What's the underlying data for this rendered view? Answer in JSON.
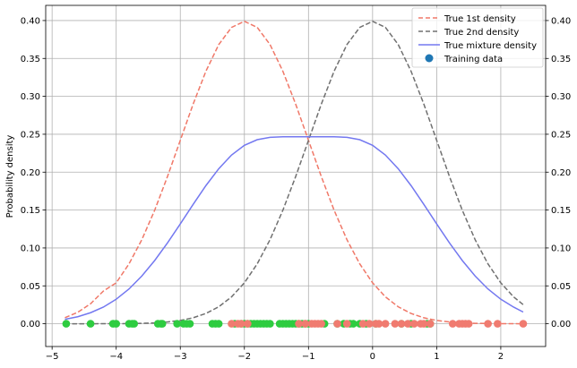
{
  "chart_data": {
    "type": "line",
    "title": "",
    "xlabel": "",
    "ylabel": "Probability density",
    "xlim": [
      -5.1,
      2.7
    ],
    "ylim": [
      -0.03,
      0.42
    ],
    "grid": true,
    "legend_position": "top-right",
    "x_ticks": [
      -5,
      -4,
      -3,
      -2,
      -1,
      0,
      1,
      2
    ],
    "x_tick_labels": [
      "−5",
      "−4",
      "−3",
      "−2",
      "−1",
      "0",
      "1",
      "2"
    ],
    "y_ticks": [
      0.0,
      0.05,
      0.1,
      0.15,
      0.2,
      0.25,
      0.3,
      0.35,
      0.4
    ],
    "y_tick_labels": [
      "0.00",
      "0.05",
      "0.10",
      "0.15",
      "0.20",
      "0.25",
      "0.30",
      "0.35",
      "0.40"
    ],
    "right_y_tick_labels": [
      "0.00",
      "0.05",
      "0.10",
      "0.15",
      "0.20",
      "0.25",
      "0.30",
      "0.35",
      "0.40"
    ],
    "series": [
      {
        "name": "True 1st density",
        "style": "dashed",
        "color": "#f07868",
        "x": [
          -4.8,
          -4.6,
          -4.4,
          -4.2,
          -4.0,
          -3.8,
          -3.6,
          -3.4,
          -3.2,
          -3.0,
          -2.8,
          -2.6,
          -2.4,
          -2.2,
          -2.0,
          -1.8,
          -1.6,
          -1.4,
          -1.2,
          -1.0,
          -0.8,
          -0.6,
          -0.4,
          -0.2,
          0.0,
          0.2,
          0.4,
          0.6,
          0.8,
          1.0,
          1.2,
          1.4,
          1.6,
          1.8,
          2.0,
          2.2,
          2.35
        ],
        "y": [
          0.008,
          0.0151,
          0.0264,
          0.0431,
          0.054,
          0.079,
          0.1109,
          0.1497,
          0.1942,
          0.242,
          0.2897,
          0.3332,
          0.3683,
          0.391,
          0.3989,
          0.391,
          0.3683,
          0.3332,
          0.2897,
          0.242,
          0.1942,
          0.1497,
          0.1109,
          0.079,
          0.054,
          0.0355,
          0.0224,
          0.0136,
          0.0079,
          0.0044,
          0.0024,
          0.0012,
          0.0006,
          0.0003,
          0.0001,
          0.0001,
          0.0
        ]
      },
      {
        "name": "True 2nd density",
        "style": "dashed",
        "color": "#707070",
        "x": [
          -4.8,
          -4.6,
          -4.4,
          -4.2,
          -4.0,
          -3.8,
          -3.6,
          -3.4,
          -3.2,
          -3.0,
          -2.8,
          -2.6,
          -2.4,
          -2.2,
          -2.0,
          -1.8,
          -1.6,
          -1.4,
          -1.2,
          -1.0,
          -0.8,
          -0.6,
          -0.4,
          -0.2,
          0.0,
          0.2,
          0.4,
          0.6,
          0.8,
          1.0,
          1.2,
          1.4,
          1.6,
          1.8,
          2.0,
          2.2,
          2.35
        ],
        "y": [
          0.0,
          0.0,
          0.0,
          0.0001,
          0.0001,
          0.0003,
          0.0006,
          0.0012,
          0.0024,
          0.0044,
          0.0079,
          0.0136,
          0.0224,
          0.0355,
          0.054,
          0.079,
          0.1109,
          0.1497,
          0.1942,
          0.242,
          0.2897,
          0.3332,
          0.3683,
          0.391,
          0.3989,
          0.391,
          0.3683,
          0.3332,
          0.2897,
          0.242,
          0.1942,
          0.1497,
          0.1109,
          0.079,
          0.054,
          0.0355,
          0.0252
        ]
      },
      {
        "name": "True mixture density",
        "style": "solid",
        "color": "#7378f0",
        "x": [
          -4.8,
          -4.6,
          -4.4,
          -4.2,
          -4.0,
          -3.8,
          -3.6,
          -3.4,
          -3.2,
          -3.0,
          -2.8,
          -2.6,
          -2.4,
          -2.2,
          -2.0,
          -1.8,
          -1.6,
          -1.4,
          -1.2,
          -1.0,
          -0.8,
          -0.6,
          -0.4,
          -0.2,
          0.0,
          0.2,
          0.4,
          0.6,
          0.8,
          1.0,
          1.2,
          1.4,
          1.6,
          1.8,
          2.0,
          2.2,
          2.35
        ],
        "y": [
          0.0059,
          0.0093,
          0.0146,
          0.022,
          0.0324,
          0.0459,
          0.063,
          0.0834,
          0.1066,
          0.1317,
          0.1574,
          0.1823,
          0.2045,
          0.2226,
          0.2354,
          0.2428,
          0.2459,
          0.2466,
          0.2466,
          0.2466,
          0.2466,
          0.2466,
          0.2459,
          0.2428,
          0.2354,
          0.2226,
          0.2045,
          0.1823,
          0.1574,
          0.1317,
          0.1066,
          0.0834,
          0.063,
          0.0459,
          0.0324,
          0.022,
          0.0155
        ]
      }
    ],
    "scatter": {
      "name": "Training data",
      "legend_color": "#1f77b4",
      "y": 0.0,
      "groups": [
        {
          "color": "#2ecc40",
          "x": [
            -4.78,
            -4.4,
            -4.05,
            -4.0,
            -3.8,
            -3.75,
            -3.72,
            -3.35,
            -3.3,
            -3.28,
            -3.05,
            -2.95,
            -2.9,
            -2.85,
            -2.5,
            -2.45,
            -2.4,
            -2.15,
            -2.05,
            -2.0,
            -1.95,
            -1.9,
            -1.85,
            -1.8,
            -1.75,
            -1.7,
            -1.65,
            -1.6,
            -1.45,
            -1.4,
            -1.35,
            -1.3,
            -1.25,
            -1.2,
            -1.15,
            -1.1,
            -1.05,
            -1.0,
            -0.75,
            -0.55,
            -0.45,
            -0.35,
            -0.3,
            -0.2,
            -0.1,
            0.05,
            0.45,
            0.6,
            0.85,
            0.9
          ]
        },
        {
          "color": "#f07b70",
          "x": [
            -2.2,
            -2.1,
            -2.05,
            -1.95,
            -1.15,
            -1.05,
            -0.95,
            -0.9,
            -0.85,
            -0.8,
            -0.55,
            -0.4,
            -0.15,
            -0.05,
            0.05,
            0.1,
            0.2,
            0.35,
            0.45,
            0.55,
            0.65,
            0.75,
            0.8,
            0.9,
            1.25,
            1.35,
            1.4,
            1.45,
            1.5,
            1.8,
            1.95,
            2.35
          ]
        }
      ]
    }
  }
}
